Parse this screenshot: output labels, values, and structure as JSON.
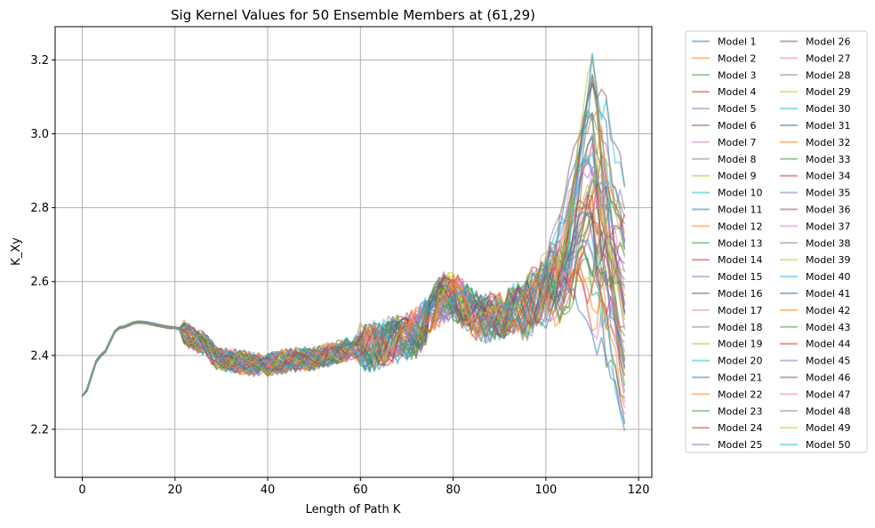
{
  "chart_data": {
    "type": "line",
    "title": "Sig Kernel Values for 50 Ensemble Members at (61,29)",
    "xlabel": "Length of Path K",
    "ylabel": "K_Xy",
    "xlim": [
      -5.85,
      122.85
    ],
    "ylim": [
      2.07,
      3.29
    ],
    "xticks": [
      0,
      20,
      40,
      60,
      80,
      100,
      120
    ],
    "yticks": [
      2.2,
      2.4,
      2.6,
      2.8,
      3.0,
      3.2
    ],
    "xtick_labels": [
      "0",
      "20",
      "40",
      "60",
      "80",
      "100",
      "120"
    ],
    "ytick_labels": [
      "2.2",
      "2.4",
      "2.6",
      "2.8",
      "3.0",
      "3.2"
    ],
    "grid": true,
    "legend_placement": "outside-right",
    "legend_columns": 2,
    "x_points": 118,
    "start_value": 2.29,
    "series_names": [
      "Model 1",
      "Model 2",
      "Model 3",
      "Model 4",
      "Model 5",
      "Model 6",
      "Model 7",
      "Model 8",
      "Model 9",
      "Model 10",
      "Model 11",
      "Model 12",
      "Model 13",
      "Model 14",
      "Model 15",
      "Model 16",
      "Model 17",
      "Model 18",
      "Model 19",
      "Model 20",
      "Model 21",
      "Model 22",
      "Model 23",
      "Model 24",
      "Model 25",
      "Model 26",
      "Model 27",
      "Model 28",
      "Model 29",
      "Model 30",
      "Model 31",
      "Model 32",
      "Model 33",
      "Model 34",
      "Model 35",
      "Model 36",
      "Model 37",
      "Model 38",
      "Model 39",
      "Model 40",
      "Model 41",
      "Model 42",
      "Model 43",
      "Model 44",
      "Model 45",
      "Model 46",
      "Model 47",
      "Model 48",
      "Model 49",
      "Model 50"
    ],
    "series_colors": [
      "#1f77b4",
      "#ff7f0e",
      "#2ca02c",
      "#d62728",
      "#9467bd",
      "#8c564b",
      "#e377c2",
      "#7f7f7f",
      "#bcbd22",
      "#17becf"
    ],
    "line_alpha": 0.5,
    "peak_x": 110,
    "peak_range": [
      2.52,
      3.23
    ],
    "end_range": [
      2.13,
      2.94
    ]
  }
}
